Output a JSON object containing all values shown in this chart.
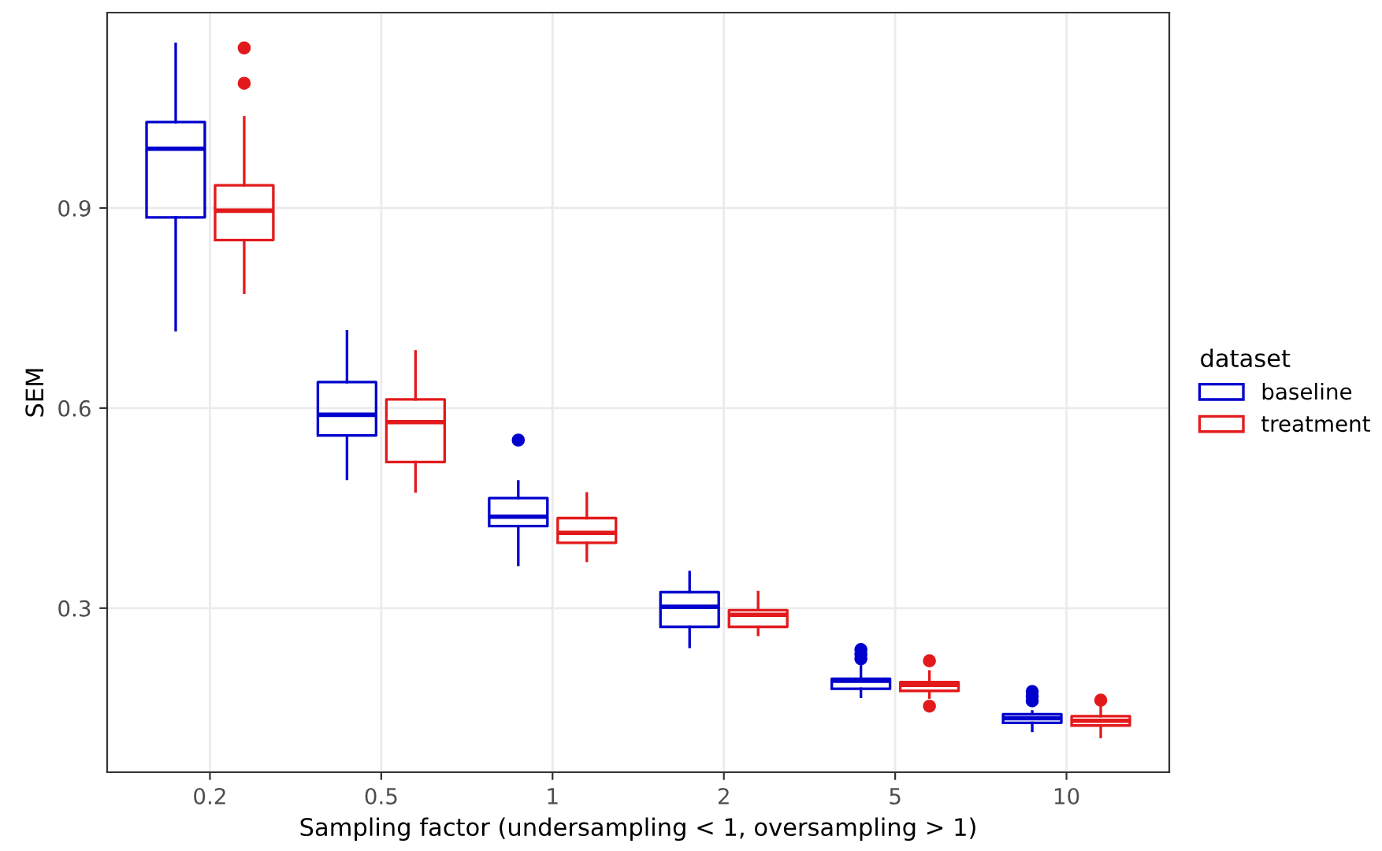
{
  "chart_data": {
    "type": "box",
    "xlabel": "Sampling factor (undersampling < 1, oversampling > 1)",
    "ylabel": "SEM",
    "legend_title": "dataset",
    "legend": "right",
    "grid": true,
    "categories": [
      "0.2",
      "0.5",
      "1",
      "2",
      "5",
      "10"
    ],
    "ylim": [
      0.054,
      1.193
    ],
    "yticks": [
      0.3,
      0.6,
      0.9
    ],
    "series": [
      {
        "name": "baseline",
        "color": "#0000cd",
        "boxes": [
          {
            "low": 0.717,
            "q1": 0.886,
            "median": 0.989,
            "q3": 1.029,
            "high": 1.146
          },
          {
            "low": 0.494,
            "q1": 0.559,
            "median": 0.59,
            "q3": 0.639,
            "high": 0.715
          },
          {
            "low": 0.365,
            "q1": 0.423,
            "median": 0.437,
            "q3": 0.465,
            "high": 0.49,
            "outliers": [
              0.552
            ]
          },
          {
            "low": 0.242,
            "q1": 0.272,
            "median": 0.302,
            "q3": 0.324,
            "high": 0.354
          },
          {
            "low": 0.167,
            "q1": 0.179,
            "median": 0.191,
            "q3": 0.194,
            "high": 0.216,
            "outliers": [
              0.224,
              0.231,
              0.238
            ]
          },
          {
            "low": 0.116,
            "q1": 0.128,
            "median": 0.135,
            "q3": 0.141,
            "high": 0.145,
            "outliers": [
              0.161,
              0.168,
              0.175
            ]
          }
        ]
      },
      {
        "name": "treatment",
        "color": "#e31a1c",
        "boxes": [
          {
            "low": 0.773,
            "q1": 0.852,
            "median": 0.896,
            "q3": 0.934,
            "high": 1.036,
            "outliers": [
              1.087,
              1.14
            ]
          },
          {
            "low": 0.475,
            "q1": 0.519,
            "median": 0.579,
            "q3": 0.613,
            "high": 0.685
          },
          {
            "low": 0.371,
            "q1": 0.398,
            "median": 0.413,
            "q3": 0.435,
            "high": 0.472
          },
          {
            "low": 0.26,
            "q1": 0.272,
            "median": 0.29,
            "q3": 0.297,
            "high": 0.324
          },
          {
            "low": 0.166,
            "q1": 0.176,
            "median": 0.185,
            "q3": 0.189,
            "high": 0.205,
            "outliers": [
              0.153,
              0.221
            ]
          },
          {
            "low": 0.107,
            "q1": 0.124,
            "median": 0.131,
            "q3": 0.138,
            "high": 0.151,
            "outliers": [
              0.162
            ]
          }
        ]
      }
    ]
  }
}
